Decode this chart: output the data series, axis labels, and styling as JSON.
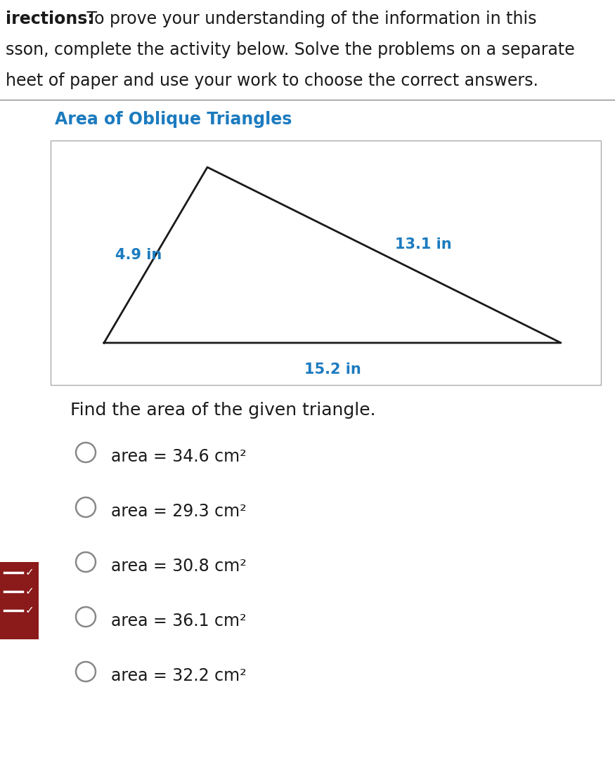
{
  "directions_bold": "irections:",
  "directions_line1_rest": " To prove your understanding of the information in this",
  "directions_line2": "sson, complete the activity below. Solve the problems on a separate",
  "directions_line3": "heet of paper and use your work to choose the correct answers.",
  "section_title": "Area of Oblique Triangles",
  "section_title_color": "#1c7bbf",
  "triangle_side_left": "4.9 in",
  "triangle_side_right": "13.1 in",
  "triangle_base": "15.2 in",
  "triangle_label_color": "#1c7bbf",
  "question_text": "Find the area of the given triangle.",
  "choices": [
    "area = 34.6 cm²",
    "area = 29.3 cm²",
    "area = 30.8 cm²",
    "area = 36.1 cm²",
    "area = 32.2 cm²"
  ],
  "bg_color": "#ffffff",
  "text_color": "#1a1a1a",
  "radio_color": "#888888",
  "separator_color": "#888888",
  "box_edge_color": "#aaaaaa",
  "triangle_color": "#1a1a1a",
  "sidebar_color": "#8b1a1a",
  "dir_fontsize": 17,
  "section_fontsize": 17,
  "tri_label_fontsize": 15,
  "question_fontsize": 18,
  "choice_fontsize": 17
}
